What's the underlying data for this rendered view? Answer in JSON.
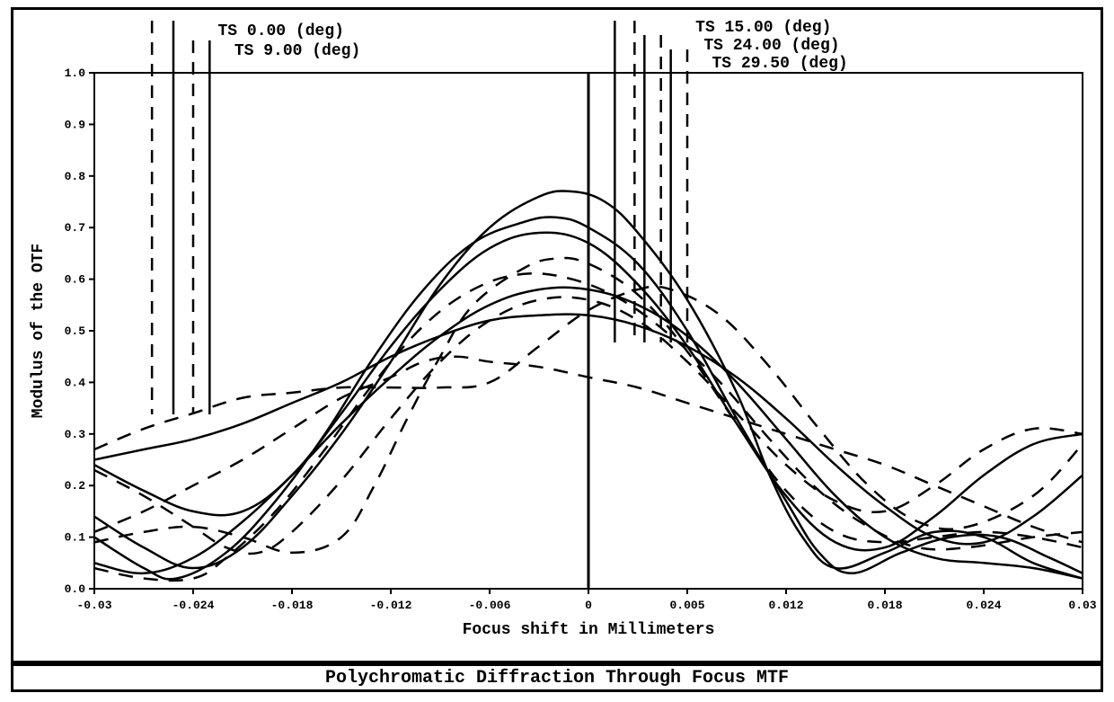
{
  "chart": {
    "type": "line",
    "title": "Polychromatic Diffraction Through Focus MTF",
    "xlabel": "Focus shift in Millimeters",
    "ylabel": "Modulus of the OTF",
    "title_fontsize": 20,
    "label_fontsize": 18,
    "tick_fontsize": 13,
    "background_color": "#ffffff",
    "border_color": "#000000",
    "border_width": 3,
    "line_color": "#000000",
    "line_width": 2.5,
    "xlim": [
      -0.03,
      0.03
    ],
    "ylim": [
      0.0,
      1.0
    ],
    "xticks": [
      -0.03,
      -0.024,
      -0.018,
      -0.012,
      -0.006,
      0,
      0.006,
      0.012,
      0.018,
      0.024,
      0.03
    ],
    "xtick_labels": [
      "-0.03",
      "-0.024",
      "-0.018",
      "-0.012",
      "-0.006",
      "0",
      "0.005",
      "0.012",
      "0.018",
      "0.024",
      "0.03"
    ],
    "yticks": [
      0.0,
      0.1,
      0.2,
      0.3,
      0.4,
      0.5,
      0.6,
      0.7,
      0.8,
      0.9,
      1.0
    ],
    "ytick_labels": [
      "0.0",
      "0.1",
      "0.2",
      "0.3",
      "0.4",
      "0.5",
      "0.6",
      "0.7",
      "0.8",
      "0.9",
      "1.0"
    ],
    "legend": [
      {
        "label": "TS 0.00 (deg)",
        "x": -0.0255,
        "dash": "solid",
        "group": "left"
      },
      {
        "label": "TS 9.00 (deg)",
        "x": -0.024,
        "dash": "dashed",
        "group": "left"
      },
      {
        "label": "TS 15.00 (deg)",
        "x": 0.0025,
        "dash": "solid",
        "group": "right"
      },
      {
        "label": "TS 24.00 (deg)",
        "x": 0.004,
        "dash": "dashed",
        "group": "right"
      },
      {
        "label": "TS 29.50 (deg)",
        "x": 0.0052,
        "dash": "solid",
        "group": "right"
      }
    ],
    "legend_marker_x_left_solid": -0.026,
    "legend_marker_x_left_dashed": -0.0245,
    "legend_marker_x_right_solid": 0.002,
    "legend_marker_x_right_dashed": 0.0035,
    "series": [
      {
        "name": "c1",
        "dash": "solid",
        "points": [
          [
            -0.03,
            0.14
          ],
          [
            -0.027,
            0.08
          ],
          [
            -0.024,
            0.04
          ],
          [
            -0.021,
            0.08
          ],
          [
            -0.018,
            0.18
          ],
          [
            -0.015,
            0.3
          ],
          [
            -0.012,
            0.44
          ],
          [
            -0.009,
            0.59
          ],
          [
            -0.006,
            0.7
          ],
          [
            -0.003,
            0.76
          ],
          [
            -0.001,
            0.77
          ],
          [
            0.001,
            0.75
          ],
          [
            0.003,
            0.69
          ],
          [
            0.006,
            0.56
          ],
          [
            0.009,
            0.38
          ],
          [
            0.011,
            0.22
          ],
          [
            0.013,
            0.1
          ],
          [
            0.015,
            0.04
          ],
          [
            0.018,
            0.07
          ],
          [
            0.021,
            0.11
          ],
          [
            0.024,
            0.1
          ],
          [
            0.027,
            0.05
          ],
          [
            0.03,
            0.02
          ]
        ]
      },
      {
        "name": "c2",
        "dash": "solid",
        "points": [
          [
            -0.03,
            0.1
          ],
          [
            -0.027,
            0.04
          ],
          [
            -0.025,
            0.02
          ],
          [
            -0.022,
            0.07
          ],
          [
            -0.019,
            0.17
          ],
          [
            -0.016,
            0.3
          ],
          [
            -0.013,
            0.45
          ],
          [
            -0.01,
            0.58
          ],
          [
            -0.007,
            0.67
          ],
          [
            -0.004,
            0.71
          ],
          [
            -0.002,
            0.72
          ],
          [
            0.0,
            0.7
          ],
          [
            0.003,
            0.63
          ],
          [
            0.006,
            0.5
          ],
          [
            0.009,
            0.33
          ],
          [
            0.012,
            0.17
          ],
          [
            0.014,
            0.07
          ],
          [
            0.016,
            0.03
          ],
          [
            0.019,
            0.07
          ],
          [
            0.022,
            0.1
          ],
          [
            0.025,
            0.1
          ],
          [
            0.028,
            0.06
          ],
          [
            0.03,
            0.03
          ]
        ]
      },
      {
        "name": "c3",
        "dash": "solid",
        "points": [
          [
            -0.03,
            0.24
          ],
          [
            -0.027,
            0.19
          ],
          [
            -0.024,
            0.15
          ],
          [
            -0.021,
            0.15
          ],
          [
            -0.018,
            0.22
          ],
          [
            -0.015,
            0.34
          ],
          [
            -0.012,
            0.47
          ],
          [
            -0.009,
            0.58
          ],
          [
            -0.006,
            0.66
          ],
          [
            -0.003,
            0.69
          ],
          [
            0.0,
            0.67
          ],
          [
            0.003,
            0.59
          ],
          [
            0.006,
            0.47
          ],
          [
            0.009,
            0.32
          ],
          [
            0.012,
            0.18
          ],
          [
            0.015,
            0.09
          ],
          [
            0.018,
            0.08
          ],
          [
            0.021,
            0.14
          ],
          [
            0.024,
            0.22
          ],
          [
            0.027,
            0.28
          ],
          [
            0.03,
            0.3
          ]
        ]
      },
      {
        "name": "c4",
        "dash": "solid",
        "points": [
          [
            -0.03,
            0.05
          ],
          [
            -0.027,
            0.03
          ],
          [
            -0.024,
            0.06
          ],
          [
            -0.021,
            0.13
          ],
          [
            -0.018,
            0.22
          ],
          [
            -0.015,
            0.32
          ],
          [
            -0.012,
            0.41
          ],
          [
            -0.009,
            0.49
          ],
          [
            -0.006,
            0.55
          ],
          [
            -0.003,
            0.58
          ],
          [
            0.0,
            0.58
          ],
          [
            0.003,
            0.55
          ],
          [
            0.006,
            0.49
          ],
          [
            0.009,
            0.4
          ],
          [
            0.012,
            0.29
          ],
          [
            0.015,
            0.18
          ],
          [
            0.018,
            0.1
          ],
          [
            0.021,
            0.06
          ],
          [
            0.024,
            0.05
          ],
          [
            0.027,
            0.04
          ],
          [
            0.03,
            0.02
          ]
        ]
      },
      {
        "name": "c5",
        "dash": "solid",
        "points": [
          [
            -0.03,
            0.25
          ],
          [
            -0.027,
            0.27
          ],
          [
            -0.024,
            0.29
          ],
          [
            -0.021,
            0.32
          ],
          [
            -0.018,
            0.36
          ],
          [
            -0.015,
            0.4
          ],
          [
            -0.012,
            0.45
          ],
          [
            -0.009,
            0.49
          ],
          [
            -0.006,
            0.52
          ],
          [
            -0.003,
            0.53
          ],
          [
            0.0,
            0.53
          ],
          [
            0.003,
            0.51
          ],
          [
            0.006,
            0.47
          ],
          [
            0.009,
            0.41
          ],
          [
            0.012,
            0.33
          ],
          [
            0.015,
            0.24
          ],
          [
            0.018,
            0.16
          ],
          [
            0.021,
            0.1
          ],
          [
            0.024,
            0.09
          ],
          [
            0.027,
            0.14
          ],
          [
            0.03,
            0.22
          ]
        ]
      },
      {
        "name": "c6",
        "dash": "dashed",
        "points": [
          [
            -0.03,
            0.09
          ],
          [
            -0.027,
            0.11
          ],
          [
            -0.024,
            0.12
          ],
          [
            -0.021,
            0.1
          ],
          [
            -0.018,
            0.07
          ],
          [
            -0.015,
            0.1
          ],
          [
            -0.013,
            0.2
          ],
          [
            -0.011,
            0.33
          ],
          [
            -0.009,
            0.45
          ],
          [
            -0.007,
            0.55
          ],
          [
            -0.004,
            0.62
          ],
          [
            -0.002,
            0.64
          ],
          [
            0.0,
            0.63
          ],
          [
            0.003,
            0.57
          ],
          [
            0.006,
            0.46
          ],
          [
            0.009,
            0.32
          ],
          [
            0.012,
            0.19
          ],
          [
            0.015,
            0.11
          ],
          [
            0.018,
            0.09
          ],
          [
            0.021,
            0.1
          ],
          [
            0.024,
            0.11
          ],
          [
            0.027,
            0.1
          ],
          [
            0.03,
            0.08
          ]
        ]
      },
      {
        "name": "c7",
        "dash": "dashed",
        "points": [
          [
            -0.03,
            0.04
          ],
          [
            -0.027,
            0.02
          ],
          [
            -0.024,
            0.02
          ],
          [
            -0.022,
            0.06
          ],
          [
            -0.019,
            0.15
          ],
          [
            -0.016,
            0.27
          ],
          [
            -0.013,
            0.4
          ],
          [
            -0.01,
            0.51
          ],
          [
            -0.007,
            0.58
          ],
          [
            -0.004,
            0.61
          ],
          [
            -0.001,
            0.6
          ],
          [
            0.002,
            0.56
          ],
          [
            0.005,
            0.49
          ],
          [
            0.008,
            0.4
          ],
          [
            0.011,
            0.29
          ],
          [
            0.014,
            0.19
          ],
          [
            0.017,
            0.12
          ],
          [
            0.02,
            0.08
          ],
          [
            0.023,
            0.08
          ],
          [
            0.027,
            0.1
          ],
          [
            0.03,
            0.11
          ]
        ]
      },
      {
        "name": "c8",
        "dash": "dashed",
        "points": [
          [
            -0.03,
            0.11
          ],
          [
            -0.027,
            0.15
          ],
          [
            -0.024,
            0.2
          ],
          [
            -0.021,
            0.25
          ],
          [
            -0.018,
            0.31
          ],
          [
            -0.015,
            0.37
          ],
          [
            -0.012,
            0.41
          ],
          [
            -0.01,
            0.44
          ],
          [
            -0.008,
            0.45
          ],
          [
            -0.006,
            0.44
          ],
          [
            -0.003,
            0.43
          ],
          [
            0.0,
            0.41
          ],
          [
            0.003,
            0.39
          ],
          [
            0.006,
            0.36
          ],
          [
            0.009,
            0.33
          ],
          [
            0.012,
            0.3
          ],
          [
            0.015,
            0.27
          ],
          [
            0.018,
            0.24
          ],
          [
            0.021,
            0.2
          ],
          [
            0.024,
            0.16
          ],
          [
            0.027,
            0.12
          ],
          [
            0.03,
            0.09
          ]
        ]
      },
      {
        "name": "c9",
        "dash": "dashed",
        "points": [
          [
            -0.03,
            0.27
          ],
          [
            -0.027,
            0.31
          ],
          [
            -0.024,
            0.34
          ],
          [
            -0.021,
            0.37
          ],
          [
            -0.018,
            0.38
          ],
          [
            -0.015,
            0.39
          ],
          [
            -0.012,
            0.39
          ],
          [
            -0.009,
            0.39
          ],
          [
            -0.006,
            0.4
          ],
          [
            -0.003,
            0.47
          ],
          [
            0.0,
            0.54
          ],
          [
            0.003,
            0.58
          ],
          [
            0.005,
            0.58
          ],
          [
            0.008,
            0.53
          ],
          [
            0.011,
            0.43
          ],
          [
            0.014,
            0.31
          ],
          [
            0.017,
            0.2
          ],
          [
            0.02,
            0.13
          ],
          [
            0.023,
            0.12
          ],
          [
            0.027,
            0.18
          ],
          [
            0.03,
            0.28
          ]
        ]
      },
      {
        "name": "c10",
        "dash": "dashed",
        "points": [
          [
            -0.03,
            0.23
          ],
          [
            -0.027,
            0.18
          ],
          [
            -0.024,
            0.12
          ],
          [
            -0.022,
            0.08
          ],
          [
            -0.02,
            0.07
          ],
          [
            -0.018,
            0.11
          ],
          [
            -0.015,
            0.21
          ],
          [
            -0.012,
            0.33
          ],
          [
            -0.009,
            0.44
          ],
          [
            -0.006,
            0.52
          ],
          [
            -0.003,
            0.56
          ],
          [
            0.0,
            0.56
          ],
          [
            0.003,
            0.52
          ],
          [
            0.006,
            0.44
          ],
          [
            0.009,
            0.34
          ],
          [
            0.012,
            0.24
          ],
          [
            0.015,
            0.17
          ],
          [
            0.018,
            0.15
          ],
          [
            0.021,
            0.2
          ],
          [
            0.024,
            0.27
          ],
          [
            0.027,
            0.31
          ],
          [
            0.03,
            0.3
          ]
        ]
      }
    ],
    "center_line_x": 0.0
  }
}
